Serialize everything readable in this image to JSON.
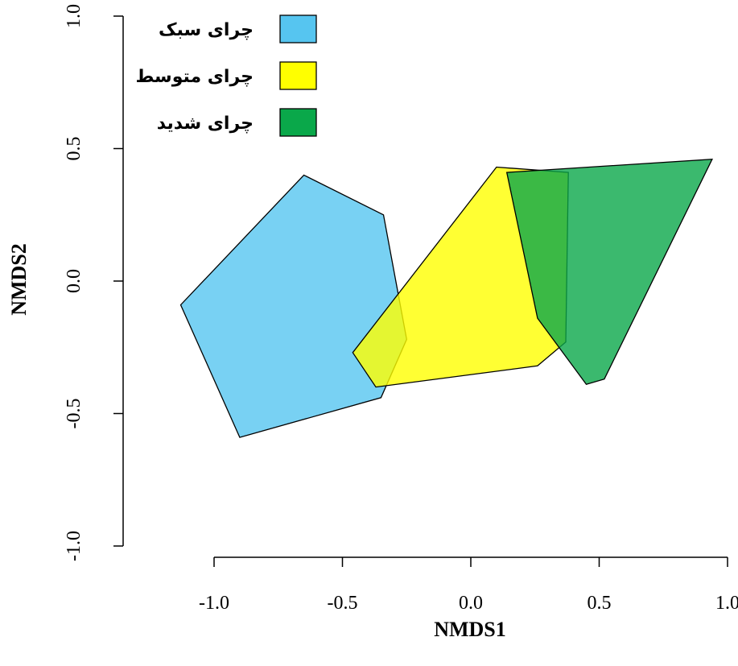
{
  "chart_data": {
    "type": "scatter",
    "subtype": "nmds-convex-hulls",
    "title": "",
    "xlabel": "NMDS1",
    "ylabel": "NMDS2",
    "xlim": [
      -1.0,
      1.0
    ],
    "ylim": [
      -1.0,
      1.0
    ],
    "xticks": [
      "-1.0",
      "-0.5",
      "0.0",
      "0.5",
      "1.0"
    ],
    "yticks": [
      "-1.0",
      "-0.5",
      "0.0",
      "0.5",
      "1.0"
    ],
    "grid": false,
    "legend_position": "top-left",
    "series": [
      {
        "name": "چرای سبک",
        "color": "#56C5F0",
        "hull": [
          [
            -0.65,
            0.4
          ],
          [
            -0.34,
            0.25
          ],
          [
            -0.25,
            -0.22
          ],
          [
            -0.35,
            -0.44
          ],
          [
            -0.9,
            -0.59
          ],
          [
            -1.13,
            -0.09
          ]
        ]
      },
      {
        "name": "چرای متوسط",
        "color": "#FFFF00",
        "hull": [
          [
            0.1,
            0.43
          ],
          [
            0.38,
            0.41
          ],
          [
            0.37,
            -0.23
          ],
          [
            0.26,
            -0.32
          ],
          [
            -0.37,
            -0.4
          ],
          [
            -0.46,
            -0.27
          ]
        ]
      },
      {
        "name": "چرای شدید",
        "color": "#0AA84A",
        "hull": [
          [
            0.14,
            0.41
          ],
          [
            0.94,
            0.46
          ],
          [
            0.52,
            -0.37
          ],
          [
            0.45,
            -0.39
          ],
          [
            0.26,
            -0.14
          ]
        ]
      }
    ]
  }
}
